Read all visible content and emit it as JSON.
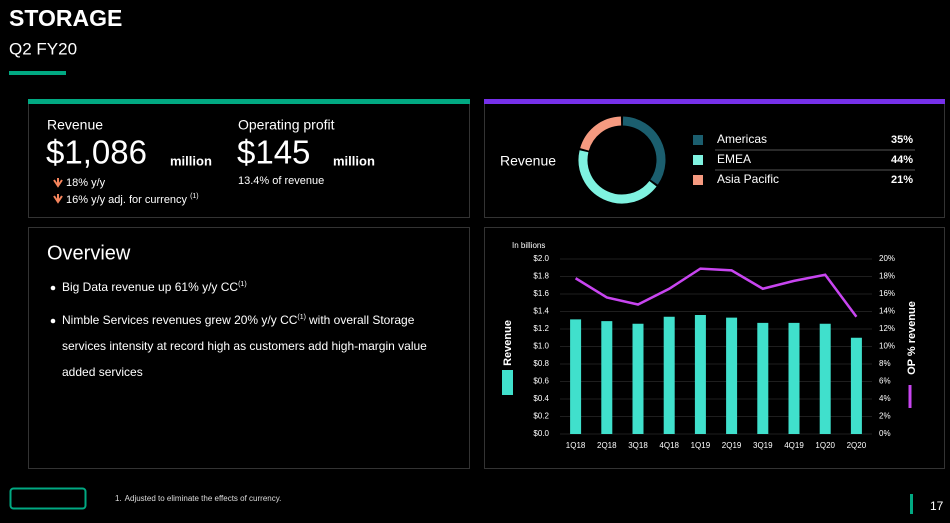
{
  "header": {
    "title": "STORAGE",
    "subtitle": "Q2 FY20"
  },
  "kpis": [
    {
      "label": "Revenue",
      "value": "$1,086",
      "unit": "million",
      "notes": [
        {
          "text": "18% y/y"
        },
        {
          "text": "16% y/y adj. for currency",
          "sup": "(1)"
        }
      ]
    },
    {
      "label": "Operating profit",
      "value": "$145",
      "unit": "million",
      "notes": [
        {
          "text": "13.4% of revenue"
        }
      ]
    }
  ],
  "overview": {
    "title": "Overview",
    "bullets": [
      {
        "text": "Big Data revenue up 61% y/y CC",
        "sup": "(1)"
      },
      {
        "text": "Nimble Services revenues grew 20% y/y CC",
        "sup": "(1)",
        "after": "with overall Storage",
        "more": [
          "services intensity at record high as customers add high-margin value",
          "added services"
        ]
      }
    ]
  },
  "chart_data": [
    {
      "type": "donut",
      "title": "Revenue",
      "categories": [
        "Americas",
        "EMEA",
        "Asia Pacific"
      ],
      "values": [
        35,
        44,
        21
      ],
      "value_labels": [
        "35%",
        "44%",
        "21%"
      ],
      "colors": [
        "#1b5e6e",
        "#7ff2e0",
        "#f59a80"
      ]
    },
    {
      "type": "bar-line",
      "subtitle": "In billions",
      "categories": [
        "1Q18",
        "2Q18",
        "3Q18",
        "4Q18",
        "1Q19",
        "2Q19",
        "3Q19",
        "4Q19",
        "1Q20",
        "2Q20"
      ],
      "series": [
        {
          "name": "Revenue",
          "type": "bar",
          "color": "#40e0cc",
          "values": [
            1.31,
            1.29,
            1.26,
            1.34,
            1.36,
            1.33,
            1.27,
            1.27,
            1.26,
            1.1
          ]
        },
        {
          "name": "OP % revenue",
          "type": "line",
          "axis": "y2",
          "color": "#c845f0",
          "values": [
            17.8,
            15.6,
            14.8,
            16.6,
            18.9,
            18.7,
            16.6,
            17.5,
            18.2,
            13.4
          ]
        }
      ],
      "ylim": [
        0,
        2
      ],
      "yticks": [
        {
          "value": 0,
          "label": "$0.0"
        },
        {
          "value": 0.2,
          "label": "$0.2"
        },
        {
          "value": 0.4,
          "label": "$0.4"
        },
        {
          "value": 0.6,
          "label": "$0.6"
        },
        {
          "value": 0.8,
          "label": "$0.8"
        },
        {
          "value": 1,
          "label": "$1.0"
        },
        {
          "value": 1.2,
          "label": "$1.2"
        },
        {
          "value": 1.4,
          "label": "$1.4"
        },
        {
          "value": 1.6,
          "label": "$1.6"
        },
        {
          "value": 1.8,
          "label": "$1.8"
        },
        {
          "value": 2,
          "label": "$2.0"
        }
      ],
      "y2lim": [
        0,
        20
      ],
      "y2ticks": [
        {
          "value": 0,
          "label": "0%"
        },
        {
          "value": 2,
          "label": "2%"
        },
        {
          "value": 4,
          "label": "4%"
        },
        {
          "value": 6,
          "label": "6%"
        },
        {
          "value": 8,
          "label": "8%"
        },
        {
          "value": 10,
          "label": "10%"
        },
        {
          "value": 12,
          "label": "12%"
        },
        {
          "value": 14,
          "label": "14%"
        },
        {
          "value": 16,
          "label": "16%"
        },
        {
          "value": 18,
          "label": "18%"
        },
        {
          "value": 20,
          "label": "20%"
        }
      ],
      "grid": true
    }
  ],
  "footnote": {
    "number": "1.",
    "text": "Adjusted to eliminate the effects of currency."
  },
  "page_number": "17"
}
